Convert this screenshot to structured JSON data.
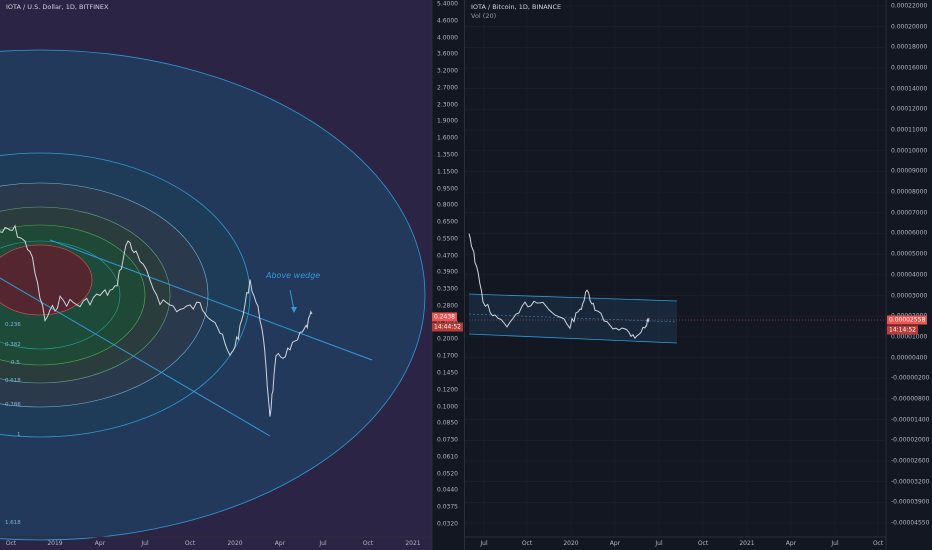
{
  "left_chart": {
    "title": "IOTA / U.S. Dollar, 1D, BITFINEX",
    "y_labels": [
      "5.4000",
      "4.6000",
      "4.0000",
      "3.6000",
      "3.2000",
      "2.7000",
      "2.3000",
      "1.9000",
      "1.6000",
      "1.3500",
      "1.1500",
      "0.9500",
      "0.8000",
      "0.6500",
      "0.5500",
      "0.4700",
      "0.3900",
      "0.3300",
      "0.2800",
      "0.2400",
      "0.2000",
      "0.1700",
      "0.1450",
      "0.1200",
      "0.1000",
      "0.0850",
      "0.0730",
      "0.0610",
      "0.0520",
      "0.0440",
      "0.0375",
      "0.0320"
    ],
    "x_labels": [
      "Oct",
      "2019",
      "Apr",
      "Jul",
      "Oct",
      "2020",
      "Apr",
      "Jul",
      "Oct",
      "2021"
    ],
    "price_badge": "0.2438",
    "countdown_badge": "14:44:52",
    "annotation": "Above wedge",
    "fib_labels": [
      "0.236",
      "0.382",
      "0.5",
      "0.618",
      "0.786",
      "1",
      "1.618"
    ]
  },
  "right_chart": {
    "title": "IOTA / Bitcoin, 1D, BINANCE",
    "subtitle": "Vol (20)",
    "y_labels": [
      "0.00022000",
      "0.00020000",
      "0.00018000",
      "0.00016000",
      "0.00014000",
      "0.00012000",
      "0.00011000",
      "0.00010000",
      "0.00009000",
      "0.00008000",
      "0.00007000",
      "0.00006000",
      "0.00005000",
      "0.00004000",
      "0.00003000",
      "0.00002000",
      "0.00001000",
      "0.00000400",
      "-0.00000200",
      "-0.00000800",
      "-0.00001400",
      "-0.00002000",
      "-0.00002600",
      "-0.00003200",
      "-0.00003900",
      "-0.00004550"
    ],
    "x_labels": [
      "Jul",
      "Oct",
      "2020",
      "Apr",
      "Jul",
      "Oct",
      "2021",
      "Apr",
      "Jul",
      "Oct"
    ],
    "price_badge": "0.00002558",
    "countdown_badge": "14:14:52"
  },
  "colors": {
    "background": "#131722",
    "down": "#ef5350",
    "fib_line": "#2f9bd8",
    "purple_band": "#3a2a5c"
  }
}
